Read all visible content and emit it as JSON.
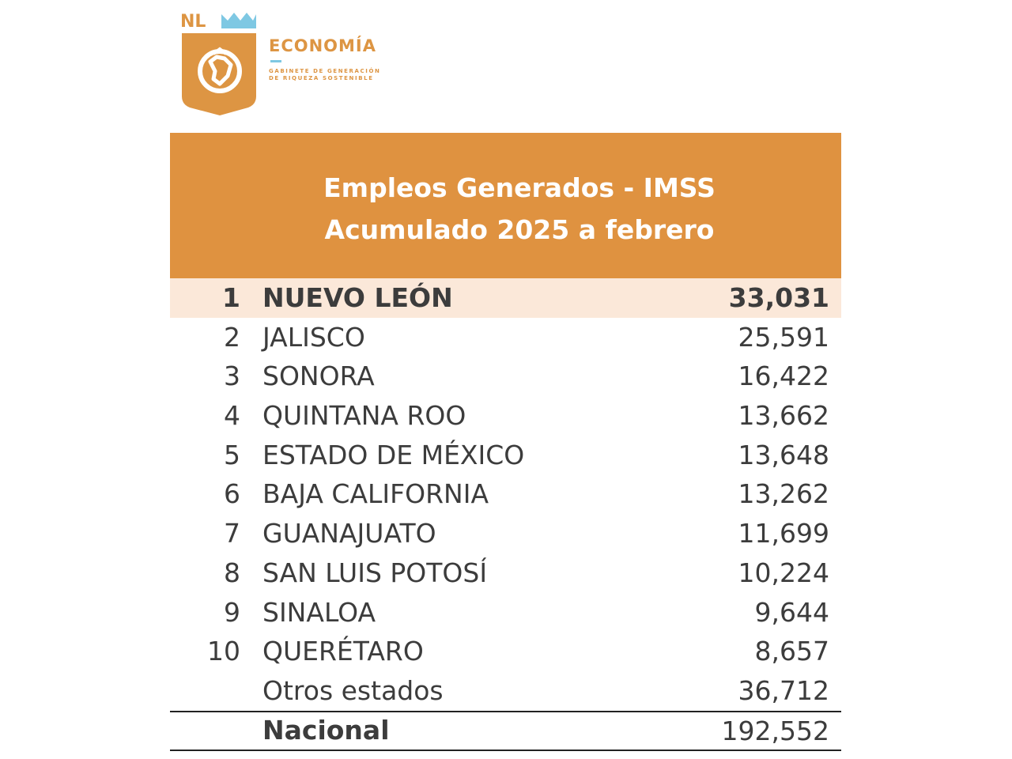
{
  "logo": {
    "mark_text": "NL",
    "title": "ECONOMÍA",
    "subtitle_line1": "GABINETE DE GENERACIÓN",
    "subtitle_line2": "DE RIQUEZA SOSTENIBLE",
    "colors": {
      "orange": "#DD9543",
      "blue": "#7EC8E3"
    }
  },
  "table": {
    "title_line1": "Empleos Generados - IMSS",
    "title_line2": "Acumulado 2025 a febrero",
    "header_color": "#DF9240",
    "highlight_color": "#FBE8D9",
    "rows": [
      {
        "rank": "1",
        "state": "NUEVO LEÓN",
        "value": "33,031"
      },
      {
        "rank": "2",
        "state": "JALISCO",
        "value": "25,591"
      },
      {
        "rank": "3",
        "state": "SONORA",
        "value": "16,422"
      },
      {
        "rank": "4",
        "state": "QUINTANA ROO",
        "value": "13,662"
      },
      {
        "rank": "5",
        "state": "ESTADO DE MÉXICO",
        "value": "13,648"
      },
      {
        "rank": "6",
        "state": "BAJA CALIFORNIA",
        "value": "13,262"
      },
      {
        "rank": "7",
        "state": "GUANAJUATO",
        "value": "11,699"
      },
      {
        "rank": "8",
        "state": "SAN LUIS POTOSÍ",
        "value": "10,224"
      },
      {
        "rank": "9",
        "state": "SINALOA",
        "value": "9,644"
      },
      {
        "rank": "10",
        "state": "QUERÉTARO",
        "value": "8,657"
      }
    ],
    "others": {
      "label": "Otros estados",
      "value": "36,712"
    },
    "total": {
      "label": "Nacional",
      "value": "192,552"
    }
  }
}
